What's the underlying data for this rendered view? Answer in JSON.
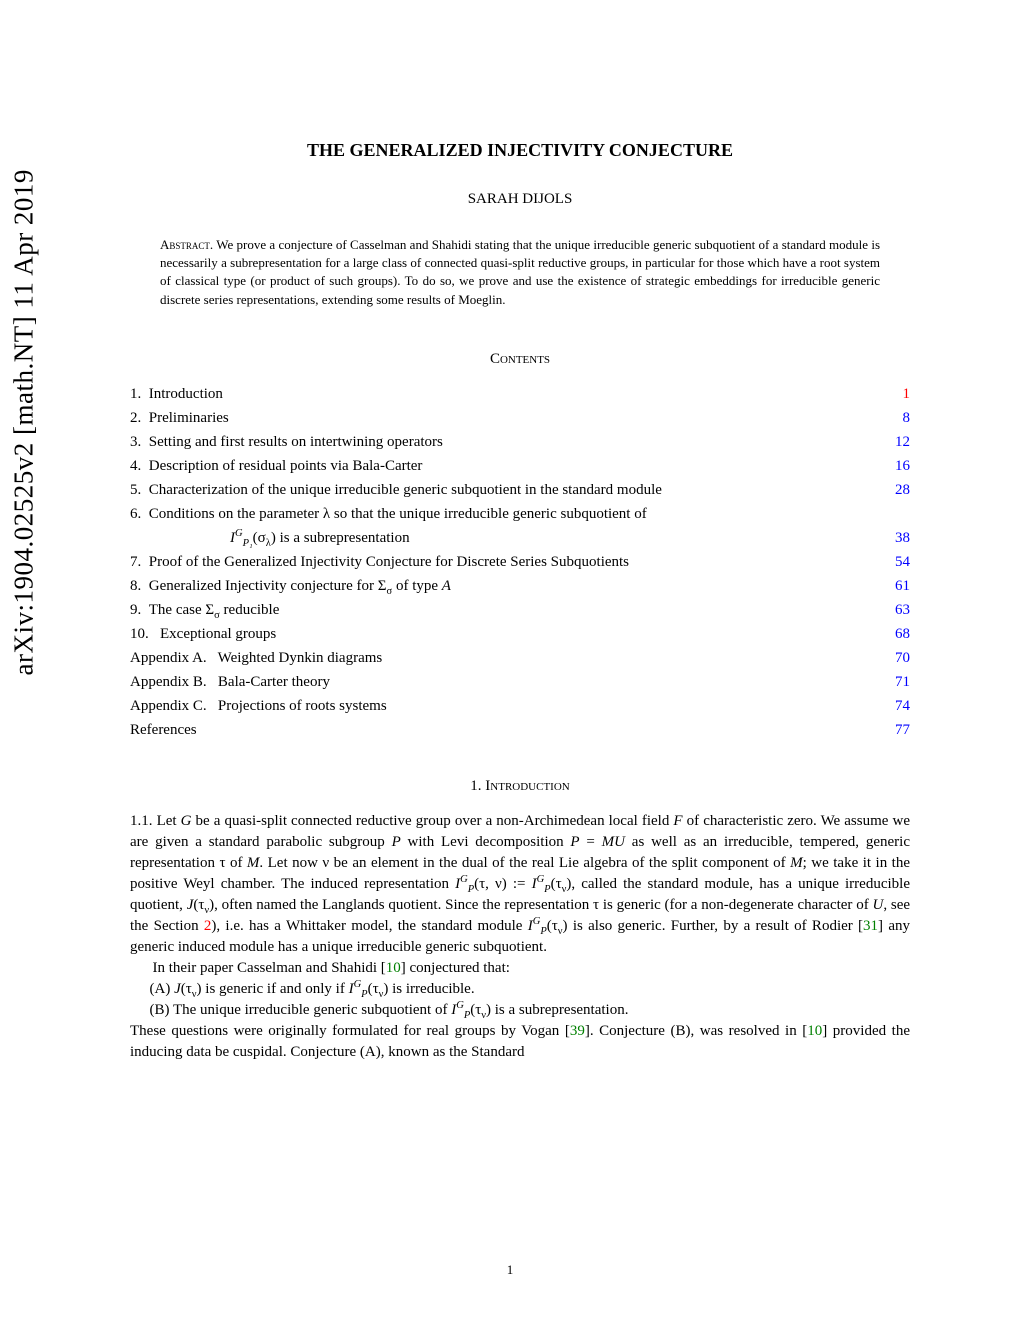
{
  "arxiv_id": "arXiv:1904.02525v2  [math.NT]  11 Apr 2019",
  "title": "THE GENERALIZED INJECTIVITY CONJECTURE",
  "author": "SARAH DIJOLS",
  "abstract_label": "Abstract.",
  "abstract_text": " We prove a conjecture of Casselman and Shahidi stating that the unique irreducible generic subquotient of a standard module is necessarily a subrepresentation for a large class of connected quasi-split reductive groups, in particular for those which have a root system of classical type (or product of such groups). To do so, we prove and use the existence of strategic embeddings for irreducible generic discrete series representations, extending some results of Moeglin.",
  "contents_label": "Contents",
  "toc": [
    {
      "num": "1.",
      "title": "Introduction",
      "page": "1",
      "color": "#ff0000"
    },
    {
      "num": "2.",
      "title": "Preliminaries",
      "page": "8",
      "color": "#0000ff"
    },
    {
      "num": "3.",
      "title": "Setting and first results on intertwining operators",
      "page": "12",
      "color": "#0000ff"
    },
    {
      "num": "4.",
      "title": "Description of residual points via Bala-Carter",
      "page": "16",
      "color": "#0000ff"
    },
    {
      "num": "5.",
      "title": "Characterization of the unique irreducible generic subquotient in the standard module",
      "page": "28",
      "color": "#0000ff"
    },
    {
      "num": "6.",
      "title_prefix": "Conditions on the parameter λ so that the unique irreducible generic subquotient of",
      "title_cont_html": "<span class=\"italic\">I</span><span class=\"sup italic\">G</span><span class=\"sub italic\">P₁</span>(σ<span class=\"sub\">λ</span>) is a subrepresentation",
      "page": "38",
      "color": "#0000ff",
      "two_line": true
    },
    {
      "num": "7.",
      "title": "Proof of the Generalized Injectivity Conjecture for Discrete Series Subquotients",
      "page": "54",
      "color": "#0000ff"
    },
    {
      "num": "8.",
      "title_html": "Generalized Injectivity conjecture for Σ<span class=\"sub\">σ</span> of type <span class=\"italic\">A</span>",
      "page": "61",
      "color": "#0000ff"
    },
    {
      "num": "9.",
      "title_html": "The case Σ<span class=\"sub\">σ</span> reducible",
      "page": "63",
      "color": "#0000ff"
    },
    {
      "num": "10.",
      "title": "  Exceptional groups",
      "page": "68",
      "color": "#0000ff"
    },
    {
      "num": "Appendix A.",
      "title": "   Weighted Dynkin diagrams",
      "page": "70",
      "color": "#0000ff"
    },
    {
      "num": "Appendix B.",
      "title": "   Bala-Carter theory",
      "page": "71",
      "color": "#0000ff"
    },
    {
      "num": "Appendix C.",
      "title": "   Projections of roots systems",
      "page": "74",
      "color": "#0000ff"
    },
    {
      "num": "References",
      "title": "",
      "page": "77",
      "color": "#0000ff"
    }
  ],
  "section1_heading": "1. Introduction",
  "intro_para1_start": "1.1.   Let ",
  "intro_text": {
    "p1": "1.1.   Let <span class=\"italic\">G</span> be a quasi-split connected reductive group over a non-Archimedean local field <span class=\"italic\">F</span> of characteristic zero. We assume we are given a standard parabolic subgroup <span class=\"italic\">P</span> with Levi decomposition <span class=\"italic\">P</span> = <span class=\"italic\">MU</span> as well as an irreducible, tempered, generic representation τ of <span class=\"italic\">M</span>. Let now ν be an element in the dual of the real Lie algebra of the split component of <span class=\"italic\">M</span>; we take it in the positive Weyl chamber. The induced representation <span class=\"italic\">I</span><span class=\"sup italic\">G</span><span class=\"sub italic\">P</span>(τ, ν) := <span class=\"italic\">I</span><span class=\"sup italic\">G</span><span class=\"sub italic\">P</span>(τ<span class=\"sub\">ν</span>), called the standard module, has a unique irreducible quotient, <span class=\"italic\">J</span>(τ<span class=\"sub\">ν</span>), often named the Langlands quotient. Since the representation τ is generic (for a non-degenerate character of <span class=\"italic\">U</span>, see the Section <span class=\"link-red\">2</span>), i.e. has a Whittaker model, the standard module <span class=\"italic\">I</span><span class=\"sup italic\">G</span><span class=\"sub italic\">P</span>(τ<span class=\"sub\">ν</span>) is also generic. Further, by a result of Rodier [<span class=\"link-green\">31</span>] any generic induced module has a unique irreducible generic subquotient.",
    "p2": "In their paper Casselman and Shahidi [<span class=\"link-green\">10</span>] conjectured that:",
    "itemA": "(A) <span class=\"italic\">J</span>(τ<span class=\"sub\">ν</span>) is generic if and only if <span class=\"italic\">I</span><span class=\"sup italic\">G</span><span class=\"sub italic\">P</span>(τ<span class=\"sub\">ν</span>) is irreducible.",
    "itemB": "(B) The unique irreducible generic subquotient of <span class=\"italic\">I</span><span class=\"sup italic\">G</span><span class=\"sub italic\">P</span>(τ<span class=\"sub\">ν</span>) is a subrepresentation.",
    "p3": "These questions were originally formulated for real groups by Vogan [<span class=\"link-green\">39</span>]. Conjecture (B), was resolved in [<span class=\"link-green\">10</span>] provided the inducing data be cuspidal. Conjecture (A), known as the Standard"
  },
  "page_number": "1",
  "colors": {
    "background": "#ffffff",
    "text": "#000000",
    "link_blue": "#0000ff",
    "link_red": "#ff0000",
    "link_green": "#008000"
  }
}
